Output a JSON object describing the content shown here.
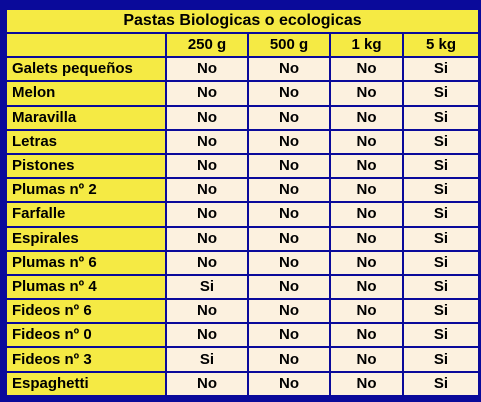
{
  "table": {
    "title": "Pastas Biologicas o ecologicas",
    "columns": [
      "250 g",
      "500 g",
      "1 kg",
      "5 kg"
    ],
    "rows": [
      {
        "name": "Galets pequeños",
        "values": [
          "No",
          "No",
          "No",
          "Si"
        ]
      },
      {
        "name": "Melon",
        "values": [
          "No",
          "No",
          "No",
          "Si"
        ]
      },
      {
        "name": "Maravilla",
        "values": [
          "No",
          "No",
          "No",
          "Si"
        ]
      },
      {
        "name": "Letras",
        "values": [
          "No",
          "No",
          "No",
          "Si"
        ]
      },
      {
        "name": "Pistones",
        "values": [
          "No",
          "No",
          "No",
          "Si"
        ]
      },
      {
        "name": "Plumas nº 2",
        "values": [
          "No",
          "No",
          "No",
          "Si"
        ]
      },
      {
        "name": "Farfalle",
        "values": [
          "No",
          "No",
          "No",
          "Si"
        ]
      },
      {
        "name": "Espirales",
        "values": [
          "No",
          "No",
          "No",
          "Si"
        ]
      },
      {
        "name": "Plumas nº 6",
        "values": [
          "No",
          "No",
          "No",
          "Si"
        ]
      },
      {
        "name": "Plumas nº 4",
        "values": [
          "Si",
          "No",
          "No",
          "Si"
        ]
      },
      {
        "name": "Fideos nº 6",
        "values": [
          "No",
          "No",
          "No",
          "Si"
        ]
      },
      {
        "name": "Fideos nº 0",
        "values": [
          "No",
          "No",
          "No",
          "Si"
        ]
      },
      {
        "name": "Fideos nº 3",
        "values": [
          "Si",
          "No",
          "No",
          "Si"
        ]
      },
      {
        "name": "Espaghetti",
        "values": [
          "No",
          "No",
          "No",
          "Si"
        ]
      }
    ]
  },
  "colors": {
    "background": "#0a0a9a",
    "header": "#f5ea44",
    "cell": "#fcf1df"
  }
}
